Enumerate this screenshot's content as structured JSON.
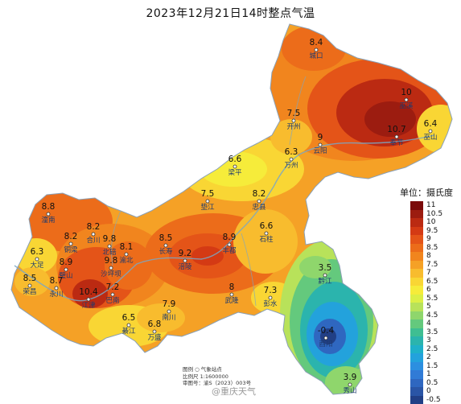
{
  "title": "2023年12月21日14时整点气温",
  "legend": {
    "title": "单位：摄氏度",
    "items": [
      {
        "label": "11",
        "color": "#7a0a0a"
      },
      {
        "label": "10.5",
        "color": "#9c1c10"
      },
      {
        "label": "10",
        "color": "#bb2a12"
      },
      {
        "label": "9.5",
        "color": "#d43a14"
      },
      {
        "label": "9",
        "color": "#e45418"
      },
      {
        "label": "8.5",
        "color": "#ec6c1a"
      },
      {
        "label": "8",
        "color": "#f1851e"
      },
      {
        "label": "7.5",
        "color": "#f5a126"
      },
      {
        "label": "7",
        "color": "#f8bc2e"
      },
      {
        "label": "6.5",
        "color": "#f9d634"
      },
      {
        "label": "6",
        "color": "#f6ec3a"
      },
      {
        "label": "5.5",
        "color": "#dcef46"
      },
      {
        "label": "5",
        "color": "#b8e25a"
      },
      {
        "label": "4.5",
        "color": "#8fd66c"
      },
      {
        "label": "4",
        "color": "#64c97d"
      },
      {
        "label": "3.5",
        "color": "#3fbe92"
      },
      {
        "label": "3",
        "color": "#2bb4ad"
      },
      {
        "label": "2.5",
        "color": "#1fb0c9"
      },
      {
        "label": "2",
        "color": "#23a2dc"
      },
      {
        "label": "1.5",
        "color": "#2c8fe0"
      },
      {
        "label": "1",
        "color": "#317bd6"
      },
      {
        "label": "0.5",
        "color": "#2f67c0"
      },
      {
        "label": "0",
        "color": "#2a55a6"
      },
      {
        "label": "-0.5",
        "color": "#213f86"
      }
    ]
  },
  "stations": [
    {
      "value": "8.4",
      "name": "城口"
    },
    {
      "value": "10",
      "name": "巫溪"
    },
    {
      "value": "7.5",
      "name": "开州"
    },
    {
      "value": "10.7",
      "name": "奉节"
    },
    {
      "value": "6.4",
      "name": "巫山"
    },
    {
      "value": "9",
      "name": "云阳"
    },
    {
      "value": "6.6",
      "name": "梁平"
    },
    {
      "value": "6.3",
      "name": "万州"
    },
    {
      "value": "7.5",
      "name": "垫江"
    },
    {
      "value": "8.2",
      "name": "忠县"
    },
    {
      "value": "8.8",
      "name": "潼南"
    },
    {
      "value": "6.6",
      "name": "石柱"
    },
    {
      "value": "8.2",
      "name": "合川"
    },
    {
      "value": "8.2",
      "name": "铜梁"
    },
    {
      "value": "9.8",
      "name": "北碚"
    },
    {
      "value": "8.1",
      "name": "渝北"
    },
    {
      "value": "6.3",
      "name": "大足"
    },
    {
      "value": "8.5",
      "name": "长寿"
    },
    {
      "value": "9.2",
      "name": "涪陵"
    },
    {
      "value": "8.9",
      "name": "丰都"
    },
    {
      "value": "8.9",
      "name": "璧山"
    },
    {
      "value": "9.8",
      "name": "沙坪坝"
    },
    {
      "value": "8.5",
      "name": "荣昌"
    },
    {
      "value": "8.7",
      "name": "永川"
    },
    {
      "value": "10.4",
      "name": "江津"
    },
    {
      "value": "7.2",
      "name": "巴南"
    },
    {
      "value": "8",
      "name": "武隆"
    },
    {
      "value": "7.3",
      "name": "彭水"
    },
    {
      "value": "3.5",
      "name": "黔江"
    },
    {
      "value": "7.9",
      "name": "南川"
    },
    {
      "value": "6.5",
      "name": "綦江"
    },
    {
      "value": "6.8",
      "name": "万盛"
    },
    {
      "value": "-0.4",
      "name": "酉阳"
    },
    {
      "value": "3.9",
      "name": "秀山"
    }
  ],
  "info": {
    "line1": "图例  ○ 气象站点",
    "line2": "比例尺  1:1600000",
    "line3": "审图号：渝S（2023）003号"
  },
  "watermark": "@重庆天气"
}
